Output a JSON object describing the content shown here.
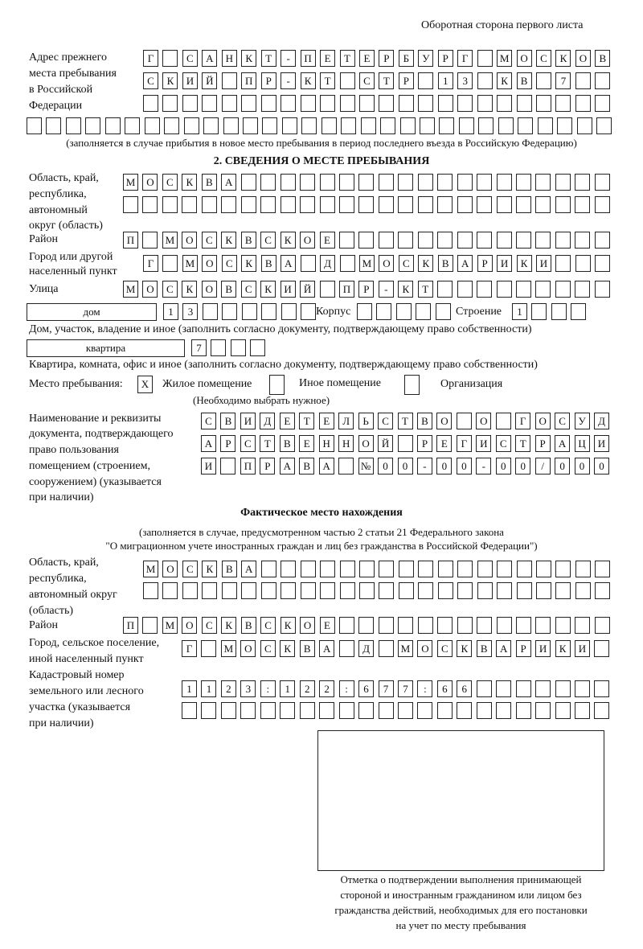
{
  "header": "Оборотная сторона первого листа",
  "prev_address": {
    "label": [
      "Адрес прежнего",
      "места пребывания",
      "в Российской",
      "Федерации"
    ],
    "rows": [
      [
        "Г",
        "",
        "С",
        "А",
        "Н",
        "К",
        "Т",
        "-",
        "П",
        "Е",
        "Т",
        "Е",
        "Р",
        "Б",
        "У",
        "Р",
        "Г",
        "",
        "М",
        "О",
        "С",
        "К",
        "О",
        "В"
      ],
      [
        "С",
        "К",
        "И",
        "Й",
        "",
        "П",
        "Р",
        "-",
        "К",
        "Т",
        "",
        "С",
        "Т",
        "Р",
        "",
        "1",
        "3",
        "",
        "К",
        "В",
        "",
        "7",
        "",
        ""
      ],
      [
        "",
        "",
        "",
        "",
        "",
        "",
        "",
        "",
        "",
        "",
        "",
        "",
        "",
        "",
        "",
        "",
        "",
        "",
        "",
        "",
        "",
        "",
        "",
        ""
      ],
      [
        "",
        "",
        "",
        "",
        "",
        "",
        "",
        "",
        "",
        "",
        "",
        "",
        "",
        "",
        "",
        "",
        "",
        "",
        "",
        "",
        "",
        "",
        "",
        "",
        "",
        "",
        "",
        "",
        "",
        ""
      ]
    ],
    "note": "(заполняется в случае прибытия в новое место пребывания в период последнего въезда в Российскую Федерацию)"
  },
  "section2": {
    "title": "2. СВЕДЕНИЯ О МЕСТЕ ПРЕБЫВАНИЯ",
    "region_label": [
      "Область, край,",
      "республика,",
      "автономный",
      "округ (область)"
    ],
    "region_rows": [
      [
        "М",
        "О",
        "С",
        "К",
        "В",
        "А",
        "",
        "",
        "",
        "",
        "",
        "",
        "",
        "",
        "",
        "",
        "",
        "",
        "",
        "",
        "",
        "",
        "",
        "",
        ""
      ],
      [
        "",
        "",
        "",
        "",
        "",
        "",
        "",
        "",
        "",
        "",
        "",
        "",
        "",
        "",
        "",
        "",
        "",
        "",
        "",
        "",
        "",
        "",
        "",
        "",
        ""
      ]
    ],
    "district_label": "Район",
    "district": [
      "П",
      "",
      "М",
      "О",
      "С",
      "К",
      "В",
      "С",
      "К",
      "О",
      "Е",
      "",
      "",
      "",
      "",
      "",
      "",
      "",
      "",
      "",
      "",
      "",
      "",
      "",
      ""
    ],
    "city_label": [
      "Город или другой",
      "населенный пункт"
    ],
    "city": [
      "Г",
      "",
      "М",
      "О",
      "С",
      "К",
      "В",
      "А",
      "",
      "Д",
      "",
      "М",
      "О",
      "С",
      "К",
      "В",
      "А",
      "Р",
      "И",
      "К",
      "И",
      "",
      "",
      ""
    ],
    "street_label": "Улица",
    "street": [
      "М",
      "О",
      "С",
      "К",
      "О",
      "В",
      "С",
      "К",
      "И",
      "Й",
      "",
      "П",
      "Р",
      "-",
      "К",
      "Т",
      "",
      "",
      "",
      "",
      "",
      "",
      "",
      "",
      ""
    ],
    "house_type": "дом",
    "house": [
      "1",
      "3",
      "",
      "",
      "",
      "",
      "",
      ""
    ],
    "korpus_label": "Корпус",
    "korpus": [
      "",
      "",
      "",
      "",
      ""
    ],
    "stroenie_label": "Строение",
    "stroenie": [
      "1",
      "",
      "",
      ""
    ],
    "house_note": "Дом, участок, владение и иное (заполнить согласно документу, подтверждающему право собственности)",
    "flat_type": "квартира",
    "flat": [
      "7",
      "",
      "",
      ""
    ],
    "flat_note": "Квартира, комната, офис и иное (заполнить согласно документу, подтверждающему право собственности)",
    "place_label": "Место пребывания:",
    "place_options": [
      {
        "label": "Жилое помещение",
        "mark": "Х"
      },
      {
        "label": "Иное помещение",
        "mark": ""
      },
      {
        "label": "Организация",
        "mark": ""
      }
    ],
    "place_note": "(Необходимо выбрать нужное)",
    "doc_label": [
      "Наименование и реквизиты",
      "документа, подтверждающего",
      "право пользования",
      "помещением (строением,",
      "сооружением) (указывается",
      "при наличии)"
    ],
    "doc_rows": [
      [
        "С",
        "В",
        "И",
        "Д",
        "Е",
        "Т",
        "Е",
        "Л",
        "Ь",
        "С",
        "Т",
        "В",
        "О",
        "",
        "О",
        "",
        "Г",
        "О",
        "С",
        "У",
        "Д"
      ],
      [
        "А",
        "Р",
        "С",
        "Т",
        "В",
        "Е",
        "Н",
        "Н",
        "О",
        "Й",
        "",
        "Р",
        "Е",
        "Г",
        "И",
        "С",
        "Т",
        "Р",
        "А",
        "Ц",
        "И"
      ],
      [
        "И",
        "",
        "П",
        "Р",
        "А",
        "В",
        "А",
        "",
        "№",
        "0",
        "0",
        "-",
        "0",
        "0",
        "-",
        "0",
        "0",
        "/",
        "0",
        "0",
        "0"
      ]
    ]
  },
  "actual": {
    "title": "Фактическое место нахождения",
    "note1": "(заполняется в случае, предусмотренном частью 2 статьи 21 Федерального закона",
    "note2": "\"О миграционном учете иностранных граждан и лиц без гражданства в Российской Федерации\")",
    "region_label": [
      "Область, край,",
      "республика,",
      "автономный округ",
      "(область)"
    ],
    "region_rows": [
      [
        "М",
        "О",
        "С",
        "К",
        "В",
        "А",
        "",
        "",
        "",
        "",
        "",
        "",
        "",
        "",
        "",
        "",
        "",
        "",
        "",
        "",
        "",
        "",
        "",
        ""
      ],
      [
        "",
        "",
        "",
        "",
        "",
        "",
        "",
        "",
        "",
        "",
        "",
        "",
        "",
        "",
        "",
        "",
        "",
        "",
        "",
        "",
        "",
        "",
        "",
        ""
      ]
    ],
    "district_label": "Район",
    "district": [
      "П",
      "",
      "М",
      "О",
      "С",
      "К",
      "В",
      "С",
      "К",
      "О",
      "Е",
      "",
      "",
      "",
      "",
      "",
      "",
      "",
      "",
      "",
      "",
      "",
      "",
      "",
      ""
    ],
    "city_label": [
      "Город, сельское поселение,",
      "иной населенный пункт"
    ],
    "city": [
      "Г",
      "",
      "М",
      "О",
      "С",
      "К",
      "В",
      "А",
      "",
      "Д",
      "",
      "М",
      "О",
      "С",
      "К",
      "В",
      "А",
      "Р",
      "И",
      "К",
      "И",
      ""
    ],
    "cadastre_label": [
      "Кадастровый номер",
      "земельного или лесного",
      "участка (указывается",
      "при наличии)"
    ],
    "cadastre_rows": [
      [
        "1",
        "1",
        "2",
        "3",
        ":",
        "1",
        "2",
        "2",
        ":",
        "6",
        "7",
        "7",
        ":",
        "6",
        "6",
        "",
        "",
        "",
        "",
        "",
        "",
        ""
      ],
      [
        "",
        "",
        "",
        "",
        "",
        "",
        "",
        "",
        "",
        "",
        "",
        "",
        "",
        "",
        "",
        "",
        "",
        "",
        "",
        "",
        "",
        ""
      ]
    ]
  },
  "stamp_caption": [
    "Отметка о подтверждении выполнения принимающей",
    "стороной и иностранным гражданином или лицом без",
    "гражданства действий, необходимых для его постановки",
    "на учет по месту пребывания"
  ]
}
